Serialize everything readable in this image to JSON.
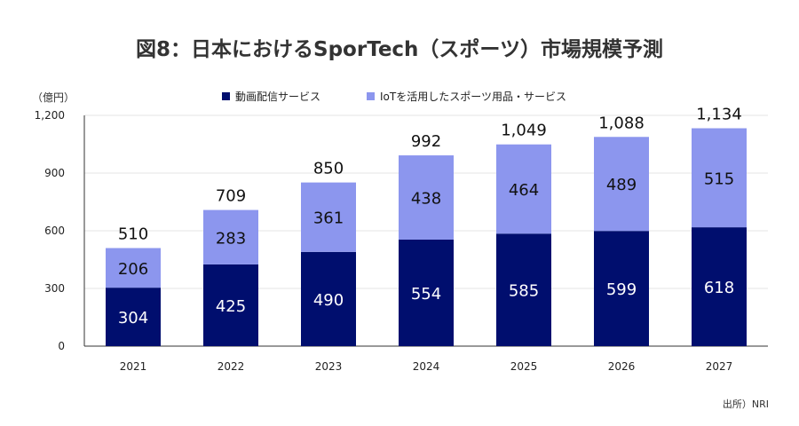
{
  "title": "図8：日本におけるSporTech（スポーツ）市場規模予測",
  "unit_label": "（億円）",
  "source": "出所）NRI",
  "colors": {
    "series1": "#000e6e",
    "series2": "#8c96ee",
    "axis": "#333333",
    "grid": "#e6e6e6"
  },
  "chart_data": {
    "type": "bar",
    "stacked": true,
    "categories": [
      "2021",
      "2022",
      "2023",
      "2024",
      "2025",
      "2026",
      "2027"
    ],
    "series": [
      {
        "name": "動画配信サービス",
        "values": [
          304,
          425,
          490,
          554,
          585,
          599,
          618
        ]
      },
      {
        "name": "IoTを活用したスポーツ用品・サービス",
        "values": [
          206,
          283,
          361,
          438,
          464,
          489,
          515
        ]
      }
    ],
    "totals": [
      "510",
      "709",
      "850",
      "992",
      "1,049",
      "1,088",
      "1,134"
    ],
    "y_ticks": [
      "0",
      "300",
      "600",
      "900",
      "1,200"
    ],
    "y_tick_values": [
      0,
      300,
      600,
      900,
      1200
    ],
    "ylim": [
      0,
      1200
    ],
    "legend_position": "top",
    "grid": true
  }
}
